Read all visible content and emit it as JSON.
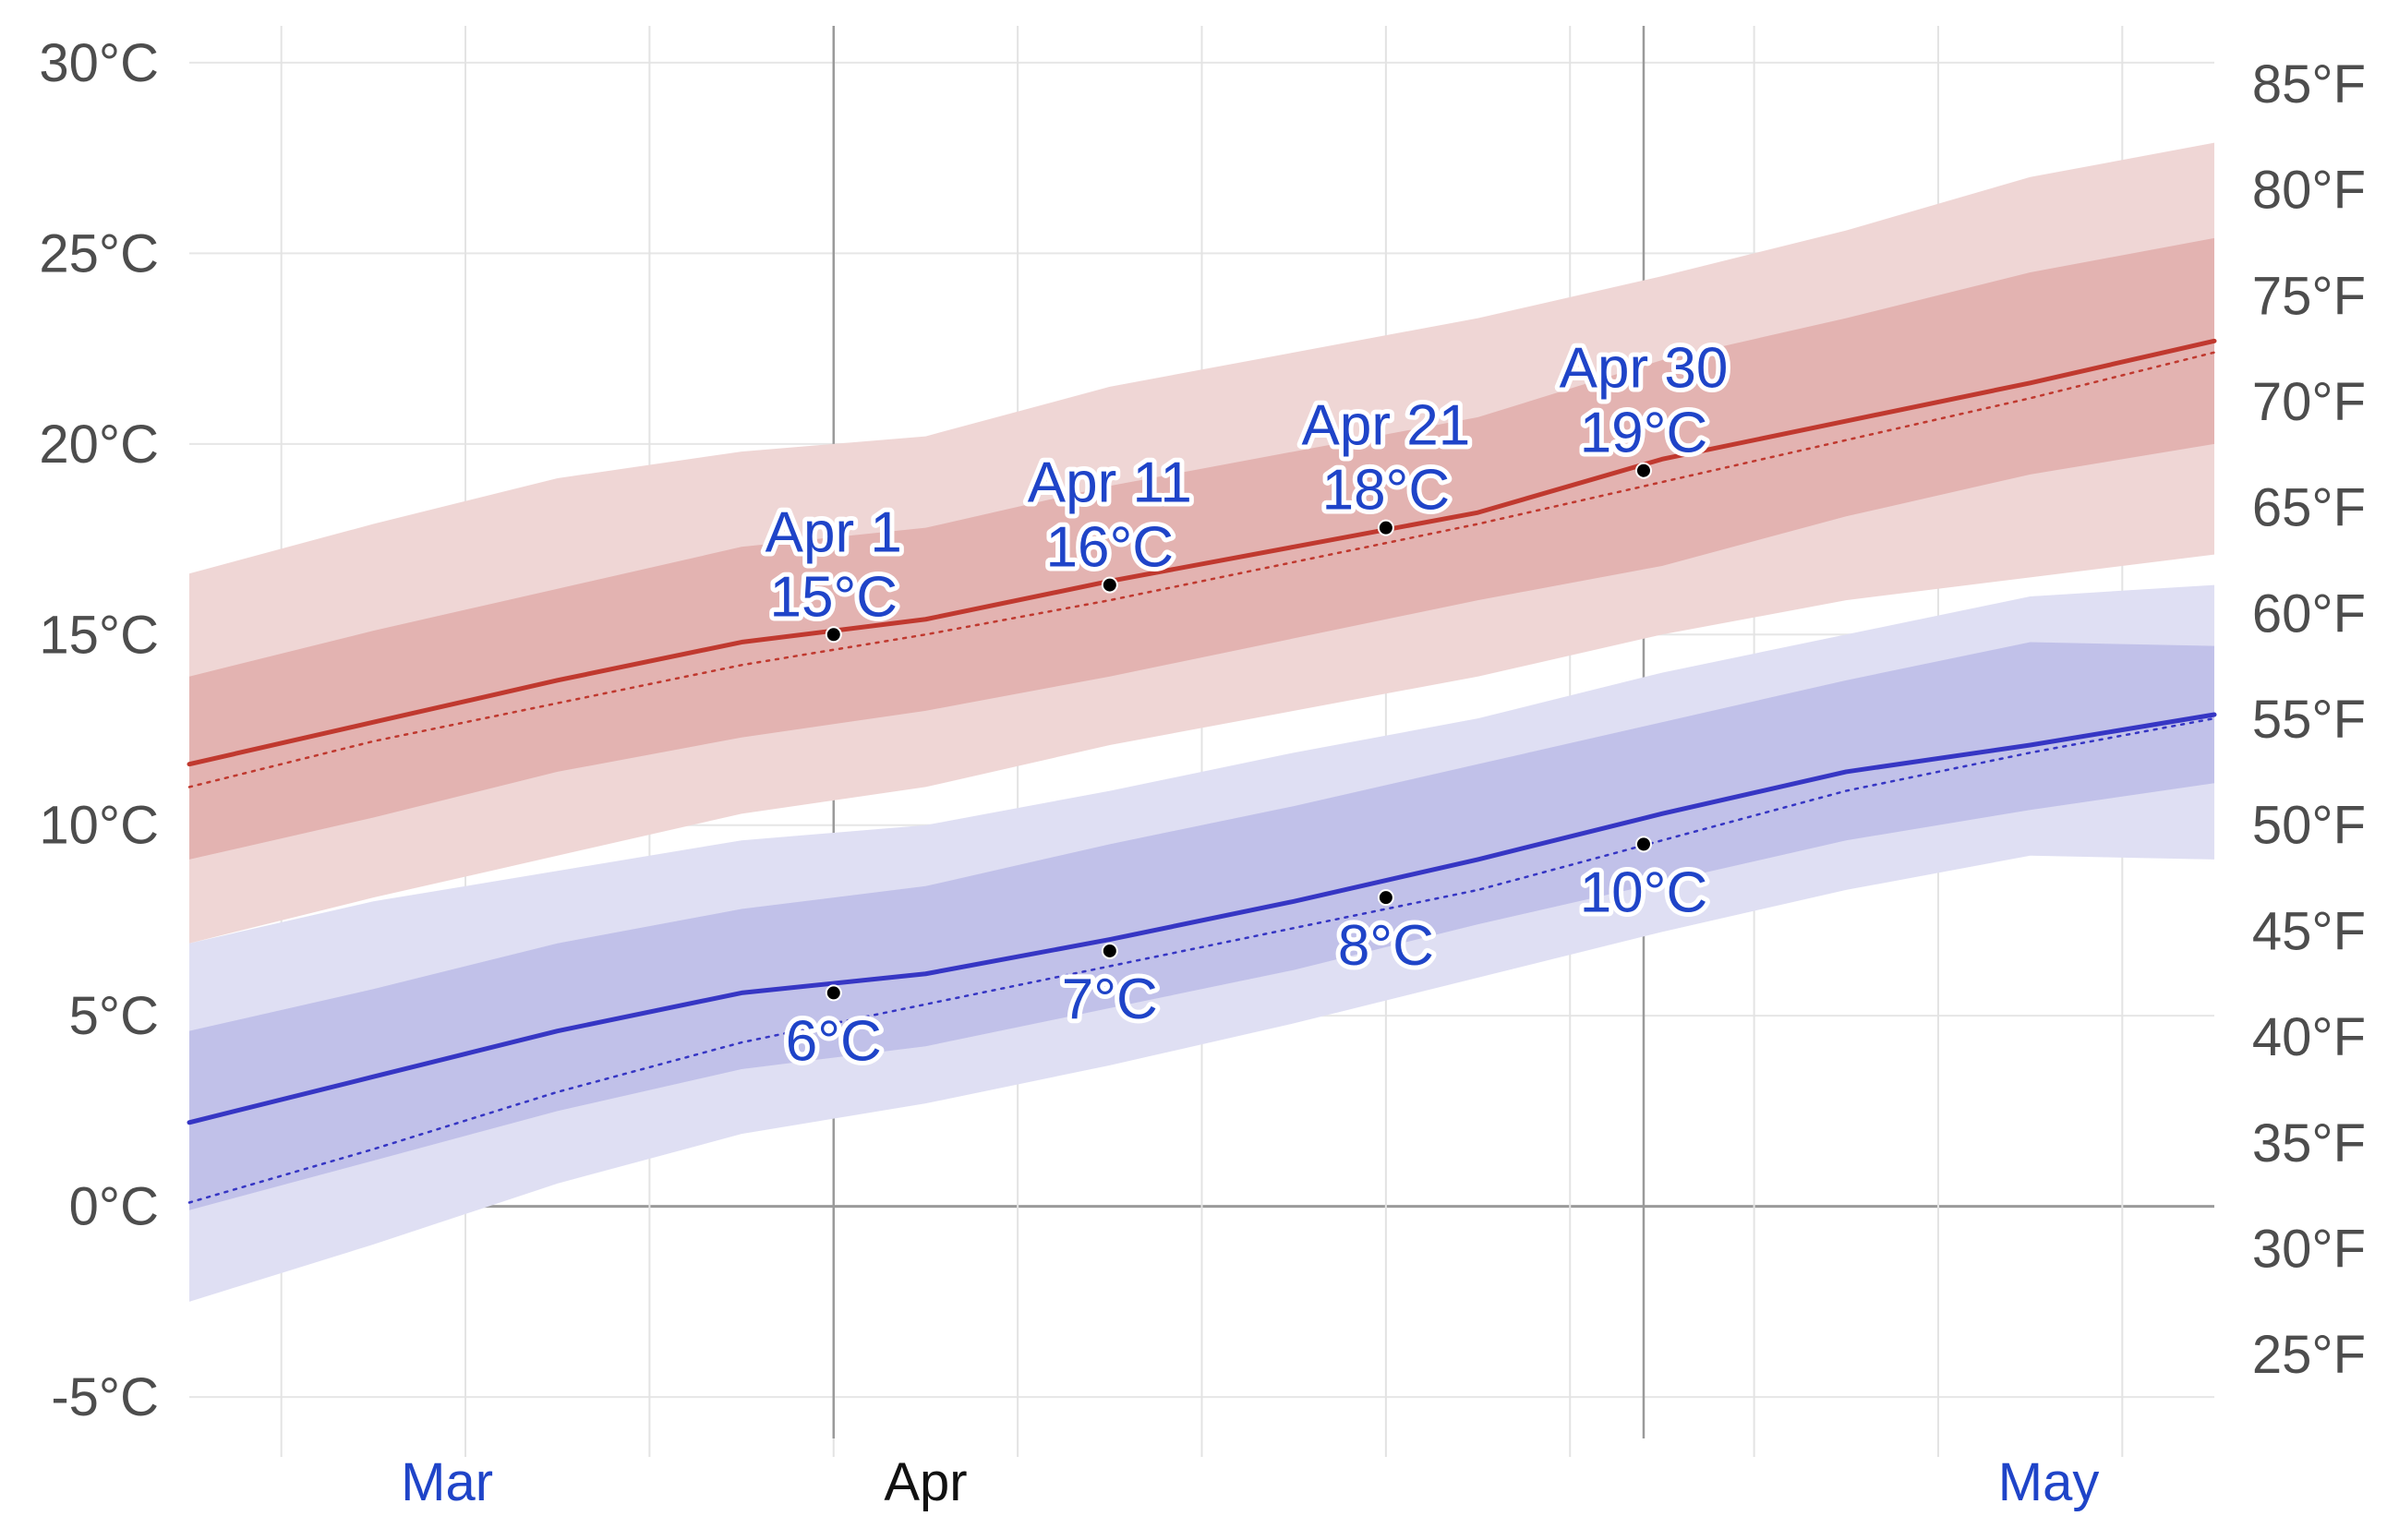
{
  "chart_data": {
    "type": "area",
    "title": "",
    "x_units": "day of year",
    "y_units": "°C",
    "xlim": [
      41,
      151
    ],
    "ylim": [
      -6.5,
      31.5
    ],
    "y_ticks_c": [
      "-5°C",
      "0°C",
      "5°C",
      "10°C",
      "15°C",
      "20°C",
      "25°C",
      "30°C"
    ],
    "y_tick_values_c": [
      -5,
      0,
      5,
      10,
      15,
      20,
      25,
      30
    ],
    "y_ticks_f": [
      "25°F",
      "30°F",
      "35°F",
      "40°F",
      "45°F",
      "50°F",
      "55°F",
      "60°F",
      "65°F",
      "70°F",
      "75°F",
      "80°F",
      "85°F"
    ],
    "y_tick_values_f": [
      25,
      30,
      35,
      40,
      45,
      50,
      55,
      60,
      65,
      70,
      75,
      80,
      85
    ],
    "x_gridlines": [
      46,
      56,
      66,
      76,
      86,
      96,
      106,
      116,
      126,
      136,
      146
    ],
    "highlight_lines": [
      76,
      120
    ],
    "month_labels": [
      {
        "label": "Mar",
        "day": 55,
        "active": false
      },
      {
        "label": "Apr",
        "day": 81,
        "active": true
      },
      {
        "label": "May",
        "day": 142,
        "active": false
      }
    ],
    "x": [
      41,
      51,
      61,
      71,
      81,
      91,
      101,
      111,
      121,
      131,
      141,
      151
    ],
    "series": [
      {
        "name": "high_mean",
        "values": [
          11.6,
          12.7,
          13.8,
          14.8,
          15.4,
          16.4,
          17.3,
          18.2,
          19.6,
          20.6,
          21.6,
          22.7
        ]
      },
      {
        "name": "high_normal",
        "values": [
          11.0,
          12.2,
          13.2,
          14.2,
          15.0,
          15.9,
          16.9,
          17.9,
          19.0,
          20.1,
          21.2,
          22.4
        ]
      },
      {
        "name": "high_p25",
        "values": [
          9.1,
          10.2,
          11.4,
          12.3,
          13.0,
          13.9,
          14.9,
          15.9,
          16.8,
          18.1,
          19.2,
          20.0
        ]
      },
      {
        "name": "high_p75",
        "values": [
          13.9,
          15.1,
          16.2,
          17.3,
          17.8,
          18.9,
          19.8,
          20.7,
          22.2,
          23.3,
          24.5,
          25.4
        ]
      },
      {
        "name": "high_p10",
        "values": [
          6.9,
          8.1,
          9.2,
          10.3,
          11.0,
          12.1,
          13.0,
          13.9,
          15.0,
          15.9,
          16.5,
          17.1
        ]
      },
      {
        "name": "high_p90",
        "values": [
          16.6,
          17.9,
          19.1,
          19.8,
          20.2,
          21.5,
          22.4,
          23.3,
          24.4,
          25.6,
          27.0,
          27.9
        ]
      },
      {
        "name": "low_mean",
        "values": [
          2.2,
          3.4,
          4.6,
          5.6,
          6.1,
          7.0,
          8.0,
          9.1,
          10.3,
          11.4,
          12.1,
          12.9
        ]
      },
      {
        "name": "low_normal",
        "values": [
          0.1,
          1.5,
          3.0,
          4.3,
          5.3,
          6.3,
          7.3,
          8.3,
          9.6,
          10.9,
          11.9,
          12.8
        ]
      },
      {
        "name": "low_p25",
        "values": [
          -0.1,
          1.2,
          2.5,
          3.6,
          4.2,
          5.2,
          6.2,
          7.4,
          8.5,
          9.6,
          10.4,
          11.1
        ]
      },
      {
        "name": "low_p75",
        "values": [
          4.6,
          5.7,
          6.9,
          7.8,
          8.4,
          9.5,
          10.5,
          11.6,
          12.7,
          13.8,
          14.8,
          14.7
        ]
      },
      {
        "name": "low_p10",
        "values": [
          -2.5,
          -1.0,
          0.6,
          1.9,
          2.7,
          3.7,
          4.8,
          6.0,
          7.2,
          8.3,
          9.2,
          9.1
        ]
      },
      {
        "name": "low_p90",
        "values": [
          6.9,
          8.0,
          8.8,
          9.6,
          10.0,
          10.9,
          11.9,
          12.8,
          14.0,
          15.0,
          16.0,
          16.3
        ]
      }
    ],
    "annotations": [
      {
        "series": "high",
        "day": 76,
        "value": 15.0,
        "date": "Apr 1",
        "temp": "15°C"
      },
      {
        "series": "high",
        "day": 91,
        "value": 16.3,
        "date": "Apr 11",
        "temp": "16°C"
      },
      {
        "series": "high",
        "day": 106,
        "value": 17.8,
        "date": "Apr 21",
        "temp": "18°C"
      },
      {
        "series": "high",
        "day": 120,
        "value": 19.3,
        "date": "Apr 30",
        "temp": "19°C"
      },
      {
        "series": "low",
        "day": 76,
        "value": 5.6,
        "temp": "6°C"
      },
      {
        "series": "low",
        "day": 91,
        "value": 6.7,
        "temp": "7°C"
      },
      {
        "series": "low",
        "day": 106,
        "value": 8.1,
        "temp": "8°C"
      },
      {
        "series": "low",
        "day": 120,
        "value": 9.5,
        "temp": "10°C"
      }
    ],
    "colors": {
      "high_line": "#c0392f",
      "high_band_inner": "#e3b3b1",
      "high_band_outer": "#efd6d5",
      "low_line": "#3636c4",
      "low_band_inner": "#c1c1e9",
      "low_band_outer": "#dfdff3",
      "annotation_text": "#1f44c8",
      "month_active": "#111111",
      "month_inactive": "#1f44c8"
    }
  }
}
